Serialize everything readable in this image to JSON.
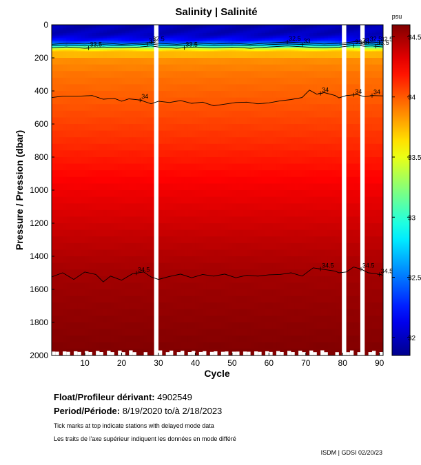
{
  "chart_data": {
    "type": "heatmap",
    "title": "Salinity | Salinité",
    "xlabel": "Cycle",
    "ylabel": "Pressure / Pression (dbar)",
    "xlim": [
      1,
      91
    ],
    "ylim": [
      2000,
      0
    ],
    "x_ticks": [
      10,
      20,
      30,
      40,
      50,
      60,
      70,
      80,
      90
    ],
    "y_ticks": [
      0,
      200,
      400,
      600,
      800,
      1000,
      1200,
      1400,
      1600,
      1800,
      2000
    ],
    "colorbar": {
      "unit": "psu",
      "range": [
        31.85,
        34.6
      ],
      "ticks": [
        34.5,
        34,
        33.5,
        33,
        32.5,
        32
      ],
      "tick_labels": [
        "34.5",
        "34",
        "33.5",
        "33",
        "32.5",
        "32"
      ]
    },
    "missing_cycles": [
      29,
      80,
      85
    ],
    "salinity_profile": [
      {
        "pressure": 0,
        "salinity": 31.95
      },
      {
        "pressure": 60,
        "salinity": 32.0
      },
      {
        "pressure": 100,
        "salinity": 32.25
      },
      {
        "pressure": 125,
        "salinity": 32.8
      },
      {
        "pressure": 150,
        "salinity": 33.6
      },
      {
        "pressure": 200,
        "salinity": 33.85
      },
      {
        "pressure": 300,
        "salinity": 33.93
      },
      {
        "pressure": 450,
        "salinity": 34.0
      },
      {
        "pressure": 700,
        "salinity": 34.12
      },
      {
        "pressure": 1000,
        "salinity": 34.28
      },
      {
        "pressure": 1300,
        "salinity": 34.42
      },
      {
        "pressure": 1500,
        "salinity": 34.5
      },
      {
        "pressure": 1800,
        "salinity": 34.56
      },
      {
        "pressure": 2000,
        "salinity": 34.6
      }
    ],
    "contours": [
      {
        "level": "32.5",
        "x": [
          1,
          5,
          10,
          15,
          20,
          25,
          28,
          30,
          35,
          40,
          45,
          50,
          55,
          60,
          65,
          70,
          75,
          79,
          81,
          84,
          86,
          88,
          91
        ],
        "y": [
          118,
          112,
          116,
          110,
          118,
          112,
          106,
          112,
          118,
          110,
          116,
          112,
          118,
          110,
          104,
          110,
          116,
          112,
          108,
          100,
          108,
          104,
          110
        ],
        "labels": [
          {
            "x": 28,
            "text": "32.5"
          },
          {
            "x": 65,
            "text": "32.5"
          },
          {
            "x": 87,
            "text": "32.5"
          },
          {
            "x": 90,
            "text": "32.5"
          }
        ]
      },
      {
        "level": "33",
        "x": [
          1,
          5,
          10,
          15,
          20,
          25,
          28,
          30,
          35,
          40,
          45,
          50,
          55,
          60,
          65,
          70,
          75,
          79,
          81,
          84,
          86,
          88,
          91
        ],
        "y": [
          126,
          122,
          128,
          120,
          126,
          120,
          116,
          122,
          128,
          120,
          126,
          122,
          128,
          120,
          116,
          120,
          126,
          122,
          118,
          112,
          118,
          116,
          122
        ],
        "labels": [
          {
            "x": 27,
            "text": "33"
          },
          {
            "x": 69,
            "text": "33"
          },
          {
            "x": 85,
            "text": "33"
          }
        ]
      },
      {
        "level": "33.5",
        "x": [
          1,
          5,
          10,
          15,
          20,
          25,
          28,
          30,
          35,
          40,
          45,
          50,
          55,
          60,
          65,
          70,
          75,
          79,
          81,
          84,
          86,
          88,
          91
        ],
        "y": [
          140,
          134,
          142,
          134,
          140,
          134,
          128,
          134,
          142,
          134,
          140,
          136,
          142,
          134,
          128,
          134,
          140,
          136,
          130,
          124,
          130,
          128,
          134
        ],
        "labels": [
          {
            "x": 11,
            "text": "33.5"
          },
          {
            "x": 37,
            "text": "33.5"
          },
          {
            "x": 83,
            "text": "33.5"
          },
          {
            "x": 89,
            "text": "33.5"
          }
        ]
      },
      {
        "level": "34",
        "x": [
          1,
          4,
          8,
          12,
          15,
          18,
          20,
          22,
          25,
          28,
          30,
          33,
          36,
          39,
          42,
          45,
          48,
          51,
          54,
          57,
          60,
          63,
          66,
          69,
          71,
          73,
          75,
          78,
          79,
          81,
          84,
          86,
          88,
          91
        ],
        "y": [
          440,
          432,
          432,
          428,
          450,
          445,
          462,
          448,
          455,
          478,
          462,
          470,
          458,
          475,
          468,
          490,
          480,
          470,
          468,
          478,
          472,
          460,
          452,
          440,
          395,
          420,
          410,
          428,
          442,
          428,
          422,
          435,
          428,
          430
        ],
        "labels": [
          {
            "x": 25,
            "text": "34"
          },
          {
            "x": 74,
            "text": "34"
          },
          {
            "x": 83,
            "text": "34"
          },
          {
            "x": 88,
            "text": "34"
          }
        ]
      },
      {
        "level": "34.5",
        "x": [
          1,
          4,
          7,
          10,
          13,
          15,
          17,
          20,
          23,
          26,
          28,
          30,
          33,
          36,
          39,
          42,
          45,
          48,
          51,
          54,
          57,
          60,
          63,
          66,
          69,
          72,
          75,
          78,
          79,
          81,
          83,
          85,
          87,
          89,
          91
        ],
        "y": [
          1525,
          1500,
          1540,
          1495,
          1510,
          1555,
          1520,
          1545,
          1505,
          1495,
          1525,
          1540,
          1522,
          1508,
          1530,
          1510,
          1520,
          1508,
          1530,
          1515,
          1520,
          1512,
          1510,
          1500,
          1520,
          1470,
          1480,
          1490,
          1500,
          1495,
          1465,
          1478,
          1500,
          1505,
          1515
        ],
        "labels": [
          {
            "x": 24,
            "text": "34.5"
          },
          {
            "x": 74,
            "text": "34.5"
          },
          {
            "x": 85,
            "text": "34.5"
          },
          {
            "x": 90,
            "text": "34.5"
          }
        ]
      }
    ]
  },
  "info": {
    "float_label": "Float/Profileur dérivant:",
    "float_value": "4902549",
    "period_label": "Period/Période:",
    "period_value": "8/19/2020  to/à  2/18/2023",
    "note_en": "Tick marks at top indicate stations with delayed mode data",
    "note_fr": "Les traits de l'axe supérieur indiquent les données en mode différé",
    "credit": "ISDM | GDSI 02/20/23"
  }
}
